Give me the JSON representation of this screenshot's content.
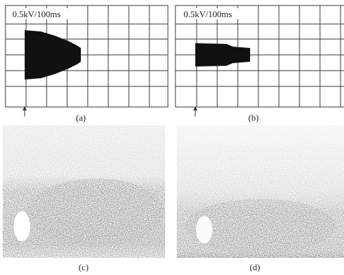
{
  "panels": [
    {
      "scale_label": "0.5kV/100ms",
      "caption": "(a)"
    },
    {
      "scale_label": "0.5kV/100ms",
      "caption": "(b)"
    },
    {
      "caption": "(c)"
    },
    {
      "caption": "(d)"
    }
  ]
}
